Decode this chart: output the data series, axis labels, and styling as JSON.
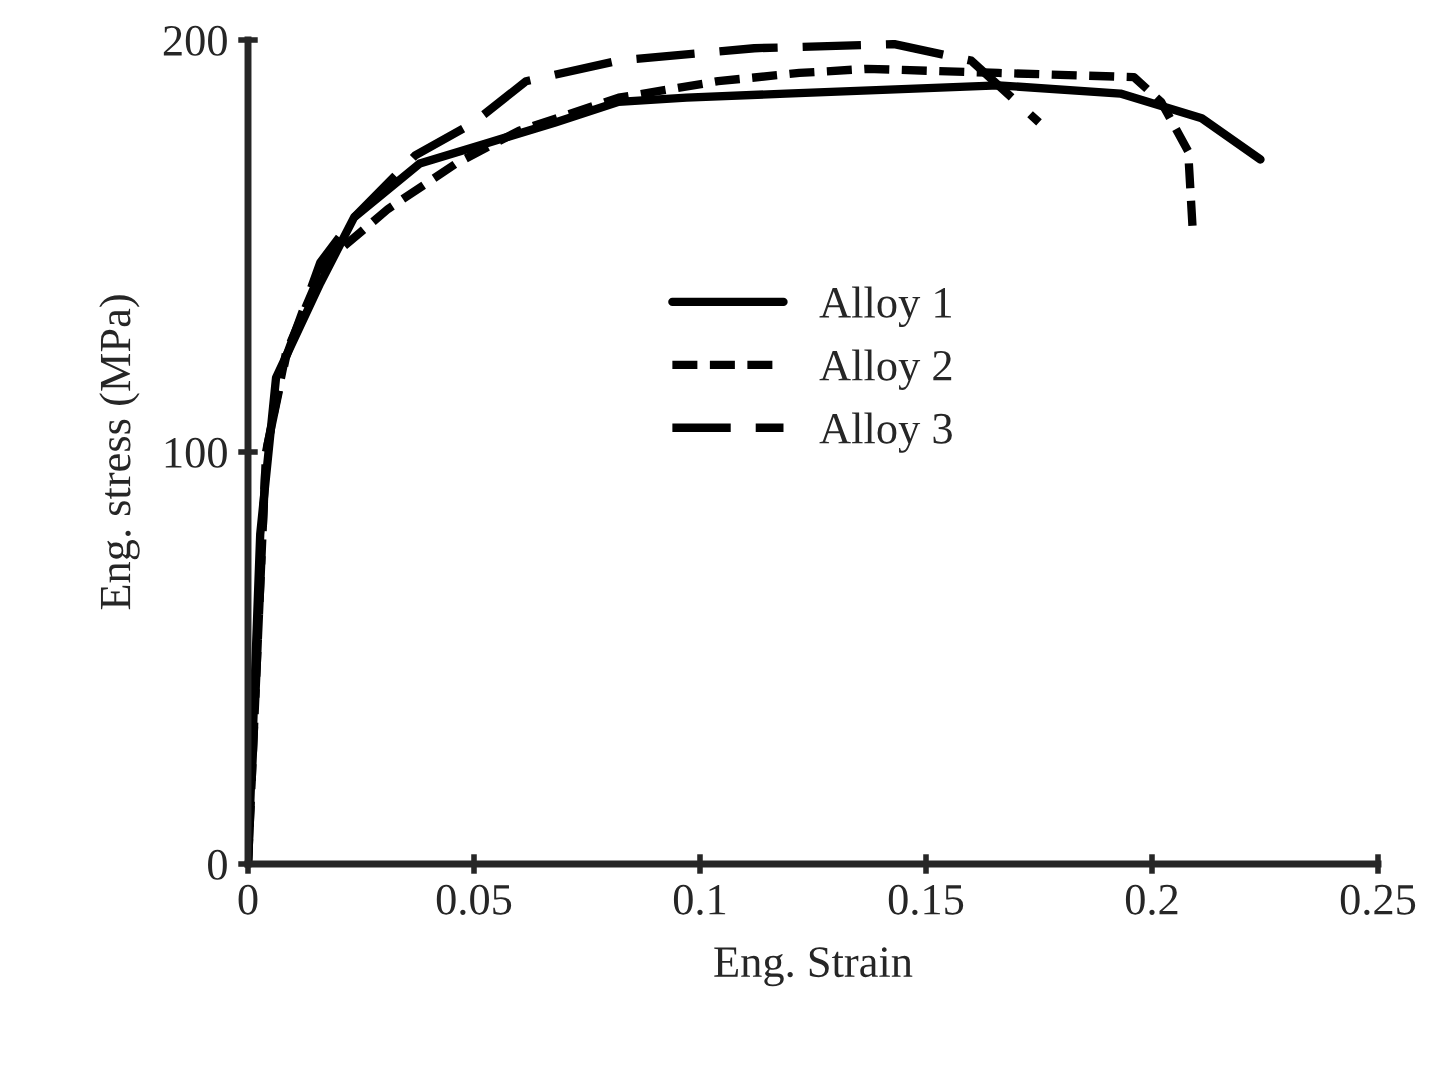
{
  "chart_data": {
    "type": "line",
    "xlabel": "Eng. Strain",
    "ylabel": "Eng. stress (MPa)",
    "xlim": [
      0,
      0.25
    ],
    "xticks": [
      0,
      0.05,
      0.1,
      0.15,
      0.2,
      0.25
    ],
    "ylim": [
      0,
      200
    ],
    "yticks": [
      0,
      100,
      200
    ],
    "grid": false,
    "legend": "center",
    "marker": "none",
    "series": [
      {
        "name": "Alloy 1",
        "color": "#000000",
        "line_style": "solid",
        "x": [
          0,
          0.0027,
          0.0062,
          0.016,
          0.0235,
          0.038,
          0.053,
          0.068,
          0.082,
          0.097,
          0.119,
          0.166,
          0.193,
          0.211,
          0.224
        ],
        "values": [
          0,
          80,
          118,
          141,
          157,
          170,
          175,
          180,
          185,
          186,
          187,
          189,
          187,
          181,
          171
        ]
      },
      {
        "name": "Alloy 2",
        "color": "#000000",
        "line_style": "dashed",
        "x": [
          0,
          0.004,
          0.0084,
          0.017,
          0.031,
          0.046,
          0.06,
          0.082,
          0.104,
          0.122,
          0.137,
          0.166,
          0.196,
          0.202,
          0.208,
          0.209
        ],
        "values": [
          0,
          100,
          124,
          146,
          159,
          170,
          178,
          186,
          190,
          192,
          193,
          192,
          191,
          185,
          173,
          154
        ]
      },
      {
        "name": "Alloy 3",
        "color": "#000000",
        "line_style": "longdash",
        "x": [
          0,
          0.004,
          0.0084,
          0.016,
          0.0235,
          0.037,
          0.05,
          0.0615,
          0.082,
          0.112,
          0.143,
          0.16,
          0.175
        ],
        "values": [
          0,
          100,
          123,
          146,
          157,
          172,
          180,
          190,
          195,
          198,
          199,
          195,
          180
        ]
      }
    ]
  }
}
